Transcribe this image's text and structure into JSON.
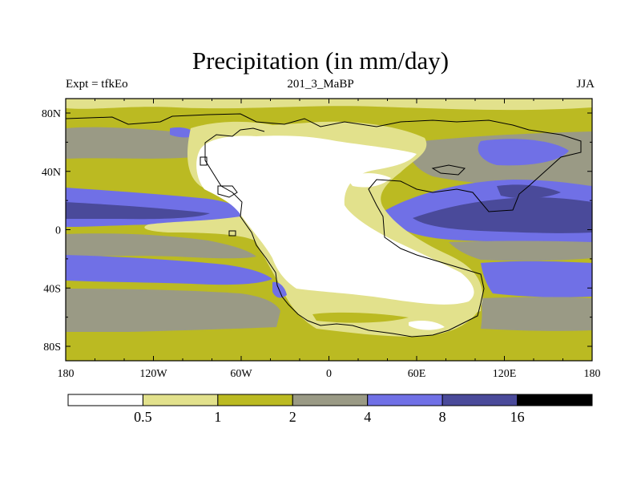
{
  "title": "Precipitation (in mm/day)",
  "left_label": "Expt = tfkEo",
  "center_label": "201_3_MaBP",
  "right_label": "JJA",
  "map_area": {
    "x_ticks": [
      "180",
      "120W",
      "60W",
      "0",
      "60E",
      "120E",
      "180"
    ],
    "y_ticks": [
      "80N",
      "40N",
      "0",
      "40S",
      "80S"
    ]
  },
  "colorbar": {
    "colors": [
      "#ffffff",
      "#e2e18c",
      "#bbba22",
      "#9a9a85",
      "#7070e6",
      "#4a4a9a",
      "#000000"
    ],
    "labels": [
      "0.5",
      "1",
      "2",
      "4",
      "8",
      "16"
    ]
  }
}
